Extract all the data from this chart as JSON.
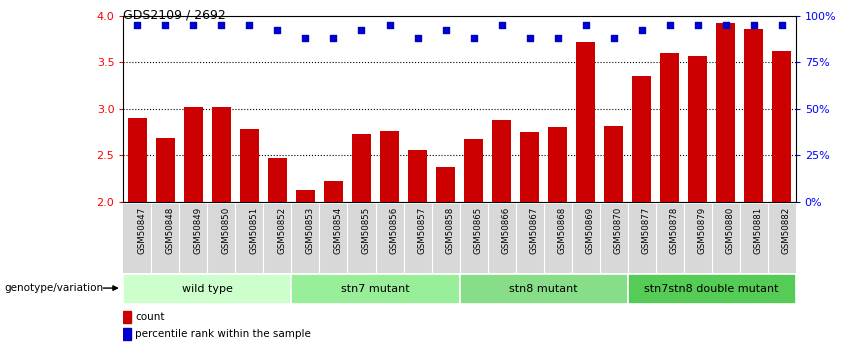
{
  "title": "GDS2109 / 2692",
  "samples": [
    "GSM50847",
    "GSM50848",
    "GSM50849",
    "GSM50850",
    "GSM50851",
    "GSM50852",
    "GSM50853",
    "GSM50854",
    "GSM50855",
    "GSM50856",
    "GSM50857",
    "GSM50858",
    "GSM50865",
    "GSM50866",
    "GSM50867",
    "GSM50868",
    "GSM50869",
    "GSM50870",
    "GSM50877",
    "GSM50878",
    "GSM50879",
    "GSM50880",
    "GSM50881",
    "GSM50882"
  ],
  "counts": [
    2.9,
    2.68,
    3.02,
    3.02,
    2.78,
    2.47,
    2.13,
    2.22,
    2.73,
    2.76,
    2.56,
    2.37,
    2.67,
    2.88,
    2.75,
    2.8,
    3.72,
    2.81,
    3.35,
    3.6,
    3.57,
    3.92,
    3.85,
    3.62
  ],
  "percentile_values": [
    95,
    95,
    95,
    95,
    95,
    92,
    88,
    88,
    92,
    95,
    88,
    92,
    88,
    95,
    88,
    88,
    95,
    88,
    92,
    95,
    95,
    95,
    95,
    95
  ],
  "groups": [
    {
      "label": "wild type",
      "start": 0,
      "end": 5,
      "color": "#ccffcc"
    },
    {
      "label": "stn7 mutant",
      "start": 6,
      "end": 11,
      "color": "#99ee99"
    },
    {
      "label": "stn8 mutant",
      "start": 12,
      "end": 17,
      "color": "#88dd88"
    },
    {
      "label": "stn7stn8 double mutant",
      "start": 18,
      "end": 23,
      "color": "#55cc55"
    }
  ],
  "bar_color": "#cc0000",
  "dot_color": "#0000cc",
  "ylim_left": [
    2.0,
    4.0
  ],
  "ylim_right": [
    0,
    100
  ],
  "yticks_left": [
    2.0,
    2.5,
    3.0,
    3.5,
    4.0
  ],
  "yticks_right": [
    0,
    25,
    50,
    75,
    100
  ],
  "ylabel_right_labels": [
    "0",
    "25",
    "50",
    "75",
    "100%"
  ],
  "bar_bottom": 2.0,
  "background_color": "#ffffff",
  "tick_bg_color": "#d8d8d8",
  "legend_count_label": "count",
  "legend_pct_label": "percentile rank within the sample"
}
